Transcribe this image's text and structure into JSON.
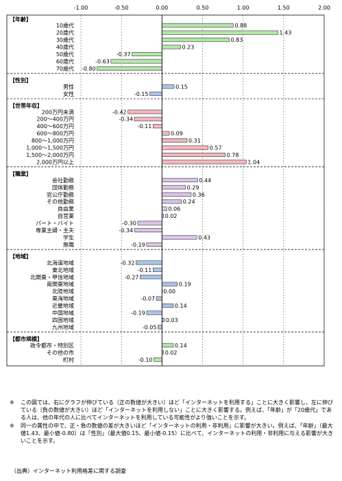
{
  "chart_data": {
    "type": "bar",
    "orientation": "horizontal",
    "xlim": [
      -1.0,
      2.0
    ],
    "x_ticks": [
      "-1.00",
      "-0.50",
      "0.00",
      "0.50",
      "1.00",
      "1.50",
      "2.00"
    ],
    "x_tick_values": [
      -1.0,
      -0.5,
      0.0,
      0.5,
      1.0,
      1.5,
      2.0
    ],
    "grid": true,
    "groups": [
      {
        "label": "【年齢】",
        "color": "#b3e6a8",
        "items": [
          {
            "label": "10歳代",
            "value": 0.88,
            "value_label": "0.88"
          },
          {
            "label": "20歳代",
            "value": 1.43,
            "value_label": "1.43"
          },
          {
            "label": "30歳代",
            "value": 0.83,
            "value_label": "0.83"
          },
          {
            "label": "40歳代",
            "value": 0.23,
            "value_label": "0.23"
          },
          {
            "label": "50歳代",
            "value": -0.37,
            "value_label": "-0.37"
          },
          {
            "label": "60歳代",
            "value": -0.63,
            "value_label": "-0.63"
          },
          {
            "label": "70歳代",
            "value": -0.8,
            "value_label": "-0.80"
          }
        ]
      },
      {
        "label": "【性別】",
        "color": "#a9c4ea",
        "items": [
          {
            "label": "男性",
            "value": 0.15,
            "value_label": "0.15"
          },
          {
            "label": "女性",
            "value": -0.15,
            "value_label": "-0.15"
          }
        ]
      },
      {
        "label": "【世帯年収】",
        "color": "#f4b6bd",
        "items": [
          {
            "label": "200万円未満",
            "value": -0.42,
            "value_label": "-0.42"
          },
          {
            "label": "200～400万円",
            "value": -0.34,
            "value_label": "-0.34"
          },
          {
            "label": "400～600万円",
            "value": -0.11,
            "value_label": "-0.11"
          },
          {
            "label": "600～800万円",
            "value": 0.09,
            "value_label": "0.09"
          },
          {
            "label": "800～1,000万円",
            "value": 0.31,
            "value_label": "0.31"
          },
          {
            "label": "1,000～1,500万円",
            "value": 0.57,
            "value_label": "0.57"
          },
          {
            "label": "1,500～2,000万円",
            "value": 0.78,
            "value_label": "0.78"
          },
          {
            "label": "2,000万円以上",
            "value": 1.04,
            "value_label": "1.04"
          }
        ]
      },
      {
        "label": "【職業】",
        "color": "#dcc3e8",
        "items": [
          {
            "label": "会社勤務",
            "value": 0.44,
            "value_label": "0.44"
          },
          {
            "label": "団体勤務",
            "value": 0.29,
            "value_label": "0.29"
          },
          {
            "label": "官公庁勤務",
            "value": 0.36,
            "value_label": "0.36"
          },
          {
            "label": "その他勤務",
            "value": 0.24,
            "value_label": "0.24"
          },
          {
            "label": "自由業",
            "value": 0.06,
            "value_label": "0.06"
          },
          {
            "label": "自営業",
            "value": 0.02,
            "value_label": "0.02"
          },
          {
            "label": "パート・バイト",
            "value": -0.3,
            "value_label": "-0.30"
          },
          {
            "label": "専業主婦・主夫",
            "value": -0.34,
            "value_label": "-0.34"
          },
          {
            "label": "学生",
            "value": 0.43,
            "value_label": "0.43"
          },
          {
            "label": "無職",
            "value": -0.19,
            "value_label": "-0.19"
          }
        ]
      },
      {
        "label": "【地域】",
        "color": "#a9c4ea",
        "items": [
          {
            "label": "北海道地域",
            "value": -0.32,
            "value_label": "-0.32"
          },
          {
            "label": "東北地域",
            "value": -0.11,
            "value_label": "-0.11"
          },
          {
            "label": "北関東・甲信地域",
            "value": -0.27,
            "value_label": "-0.27"
          },
          {
            "label": "南関東地域",
            "value": 0.19,
            "value_label": "0.19"
          },
          {
            "label": "北陸地域",
            "value": 0.0,
            "value_label": "0.00"
          },
          {
            "label": "東海地域",
            "value": -0.07,
            "value_label": "-0.07"
          },
          {
            "label": "近畿地域",
            "value": 0.14,
            "value_label": "0.14"
          },
          {
            "label": "中国地域",
            "value": -0.19,
            "value_label": "-0.19"
          },
          {
            "label": "四国地域",
            "value": 0.03,
            "value_label": "0.03"
          },
          {
            "label": "九州地域",
            "value": -0.05,
            "value_label": "-0.05"
          }
        ]
      },
      {
        "label": "【都市規模】",
        "color": "#b3e6a8",
        "items": [
          {
            "label": "政令都市・特別区",
            "value": 0.14,
            "value_label": "0.14"
          },
          {
            "label": "その他の市",
            "value": 0.02,
            "value_label": "0.02"
          },
          {
            "label": "町村",
            "value": -0.1,
            "value_label": "-0.10"
          }
        ]
      }
    ]
  },
  "notes": [
    {
      "mark": "※",
      "text": "この図では、右にグラフが伸びている（正の数値が大きい）ほど「インターネットを利用する」ことに大きく影響し、左に伸びている（負の数値が大きい）ほど「インターネットを利用しない」ことに大きく影響する。例えば、「年齢」が「20歳代」である人は、他の年代の人に比べてインターネットを利用している可能性がより強いことを示す。"
    },
    {
      "mark": "※",
      "text": "同一の属性の中で、正・負の数値の差が大きいほど「インターネットの利用・非利用」に影響が大きい。例えば、「年齢」（最大値1.43、最小値-0.80）は「性別」（最大値0.15、最小値-0.15）に比べて、インターネットの利用・非利用に与える影響が大きいことを示す。"
    }
  ],
  "source": "（出典）インターネット利用格差に関する調査"
}
